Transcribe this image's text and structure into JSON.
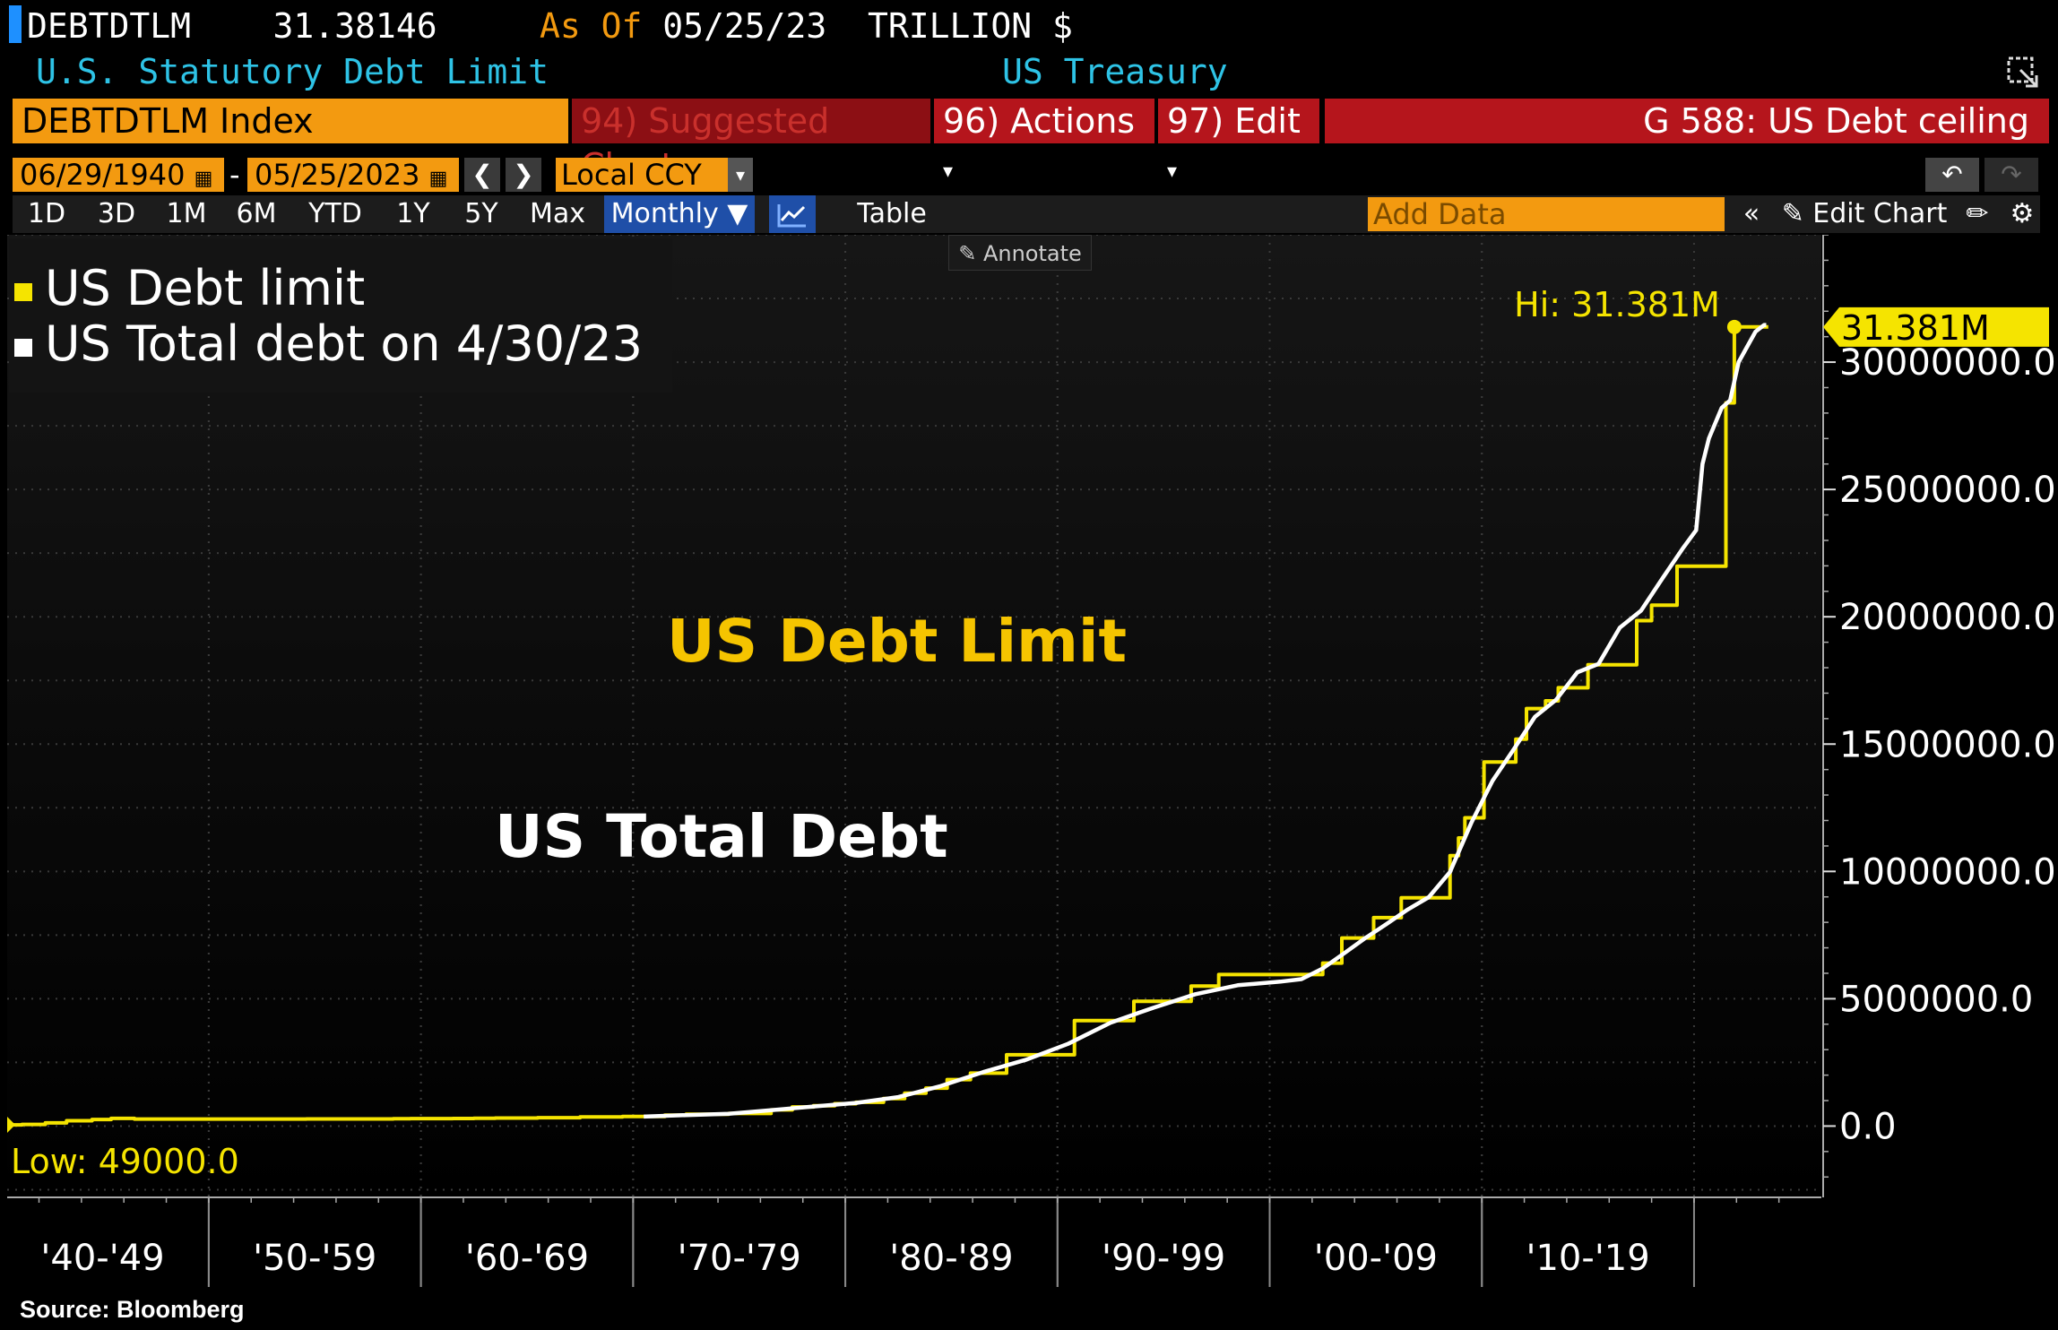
{
  "header": {
    "ticker": "DEBTDTLM",
    "last_value": "31.38146",
    "as_of_label": "As Of",
    "as_of_date": "05/25/23",
    "units": "TRILLION $",
    "description": "U.S. Statutory Debt Limit",
    "source_name": "US Treasury"
  },
  "toolbar": {
    "security": "DEBTDTLM Index",
    "suggested_num": "94)",
    "suggested_label": "Suggested Charts",
    "actions_num": "96)",
    "actions_label": "Actions",
    "edit_num": "97)",
    "edit_label": "Edit",
    "chart_title": "G 588: US Debt ceiling",
    "start_date": "06/29/1940",
    "end_date": "05/25/2023",
    "currency": "Local CCY",
    "periods": [
      "1D",
      "3D",
      "1M",
      "6M",
      "YTD",
      "1Y",
      "5Y",
      "Max"
    ],
    "frequency": "Monthly",
    "table_label": "Table",
    "add_data_placeholder": "Add Data",
    "edit_chart_label": "Edit Chart",
    "annotate_label": "Annotate"
  },
  "legend": {
    "items": [
      {
        "label": "US Debt limit",
        "color": "#f5e400"
      },
      {
        "label": "US Total debt on 4/30/23",
        "color": "#ffffff"
      }
    ]
  },
  "source": "Source: Bloomberg",
  "chart_data": {
    "type": "line",
    "y_axis_side": "right",
    "ylim": [
      -2800000,
      35000000
    ],
    "y_ticks": [
      0,
      5000000,
      10000000,
      15000000,
      20000000,
      25000000,
      30000000
    ],
    "y_tick_labels": [
      "0.0",
      "5000000.0",
      "10000000.0",
      "15000000.0",
      "20000000.0",
      "25000000.0",
      "30000000.0"
    ],
    "x_range": [
      1940.5,
      2026.0
    ],
    "x_period_labels": [
      {
        "label": "'40-'49",
        "start": 1940,
        "end": 1950
      },
      {
        "label": "'50-'59",
        "start": 1950,
        "end": 1960
      },
      {
        "label": "'60-'69",
        "start": 1960,
        "end": 1970
      },
      {
        "label": "'70-'79",
        "start": 1970,
        "end": 1980
      },
      {
        "label": "'80-'89",
        "start": 1980,
        "end": 1990
      },
      {
        "label": "'90-'99",
        "start": 1990,
        "end": 2000
      },
      {
        "label": "'00-'09",
        "start": 2000,
        "end": 2010
      },
      {
        "label": "'10-'19",
        "start": 2010,
        "end": 2020
      }
    ],
    "annotations": {
      "high_label": "Hi: 31.381M",
      "high_value": 31381000,
      "high_x": 2021.9,
      "low_label": "Low: 49000.0",
      "low_value": 49000,
      "low_x": 1940.5,
      "last_value_label": "31.381M",
      "debt_limit_text": "US Debt Limit",
      "total_debt_text": "US Total Debt"
    },
    "grid": true,
    "series": [
      {
        "name": "US Debt limit",
        "color": "#f5e400",
        "step": true,
        "points": [
          [
            1940.5,
            49000
          ],
          [
            1941.2,
            65000
          ],
          [
            1942.3,
            125000
          ],
          [
            1943.3,
            210000
          ],
          [
            1944.5,
            260000
          ],
          [
            1945.4,
            300000
          ],
          [
            1946.5,
            275000
          ],
          [
            1954.6,
            281000
          ],
          [
            1956.5,
            278000
          ],
          [
            1958.1,
            280000
          ],
          [
            1958.7,
            288000
          ],
          [
            1959.5,
            295000
          ],
          [
            1961.5,
            298000
          ],
          [
            1962.5,
            308000
          ],
          [
            1963.5,
            315000
          ],
          [
            1965.5,
            328000
          ],
          [
            1967.5,
            358000
          ],
          [
            1969.5,
            377000
          ],
          [
            1971.5,
            430000
          ],
          [
            1972.5,
            465000
          ],
          [
            1974.5,
            495000
          ],
          [
            1976.5,
            636000
          ],
          [
            1977.5,
            752000
          ],
          [
            1978.5,
            798000
          ],
          [
            1979.5,
            879000
          ],
          [
            1980.5,
            935000
          ],
          [
            1981.8,
            1079800
          ],
          [
            1982.8,
            1290200
          ],
          [
            1983.8,
            1490000
          ],
          [
            1984.8,
            1823800
          ],
          [
            1985.9,
            2078700
          ],
          [
            1987.6,
            2800000
          ],
          [
            1990.8,
            4145000
          ],
          [
            1993.6,
            4900000
          ],
          [
            1996.3,
            5500000
          ],
          [
            1997.6,
            5950000
          ],
          [
            2002.5,
            6400000
          ],
          [
            2003.4,
            7384000
          ],
          [
            2004.9,
            8184000
          ],
          [
            2006.2,
            8965000
          ],
          [
            2008.5,
            10615000
          ],
          [
            2008.9,
            11315000
          ],
          [
            2009.2,
            12104000
          ],
          [
            2010.1,
            14294000
          ],
          [
            2011.6,
            15194000
          ],
          [
            2012.1,
            16394000
          ],
          [
            2013.0,
            16699000
          ],
          [
            2013.6,
            17212000
          ],
          [
            2015.0,
            18113000
          ],
          [
            2017.3,
            19847000
          ],
          [
            2018.0,
            20456000
          ],
          [
            2019.2,
            21988000
          ],
          [
            2021.5,
            28401000
          ],
          [
            2021.9,
            31381000
          ],
          [
            2023.5,
            31381000
          ]
        ]
      },
      {
        "name": "US Total debt on 4/30/23",
        "color": "#ffffff",
        "step": false,
        "points": [
          [
            1970.5,
            370000
          ],
          [
            1972.5,
            430000
          ],
          [
            1974.5,
            480000
          ],
          [
            1976.5,
            620000
          ],
          [
            1978.5,
            770000
          ],
          [
            1980.5,
            910000
          ],
          [
            1982.5,
            1140000
          ],
          [
            1984.5,
            1570000
          ],
          [
            1986.5,
            2120000
          ],
          [
            1988.5,
            2600000
          ],
          [
            1990.5,
            3230000
          ],
          [
            1992.5,
            4060000
          ],
          [
            1994.5,
            4640000
          ],
          [
            1996.5,
            5180000
          ],
          [
            1998.5,
            5530000
          ],
          [
            2000.5,
            5670000
          ],
          [
            2001.5,
            5770000
          ],
          [
            2002.5,
            6190000
          ],
          [
            2003.5,
            6780000
          ],
          [
            2004.5,
            7380000
          ],
          [
            2005.5,
            7930000
          ],
          [
            2006.5,
            8500000
          ],
          [
            2007.5,
            8990000
          ],
          [
            2008.5,
            9980000
          ],
          [
            2009.5,
            11900000
          ],
          [
            2010.5,
            13560000
          ],
          [
            2011.5,
            14790000
          ],
          [
            2012.5,
            16070000
          ],
          [
            2013.5,
            16740000
          ],
          [
            2014.5,
            17820000
          ],
          [
            2015.5,
            18150000
          ],
          [
            2016.5,
            19570000
          ],
          [
            2017.5,
            20240000
          ],
          [
            2018.5,
            21500000
          ],
          [
            2019.5,
            22720000
          ],
          [
            2020.1,
            23400000
          ],
          [
            2020.4,
            26000000
          ],
          [
            2020.7,
            27000000
          ],
          [
            2021.3,
            28200000
          ],
          [
            2021.7,
            28500000
          ],
          [
            2022.1,
            30000000
          ],
          [
            2022.5,
            30600000
          ],
          [
            2022.9,
            31200000
          ],
          [
            2023.3,
            31460000
          ],
          [
            2023.4,
            31460000
          ]
        ]
      }
    ]
  }
}
